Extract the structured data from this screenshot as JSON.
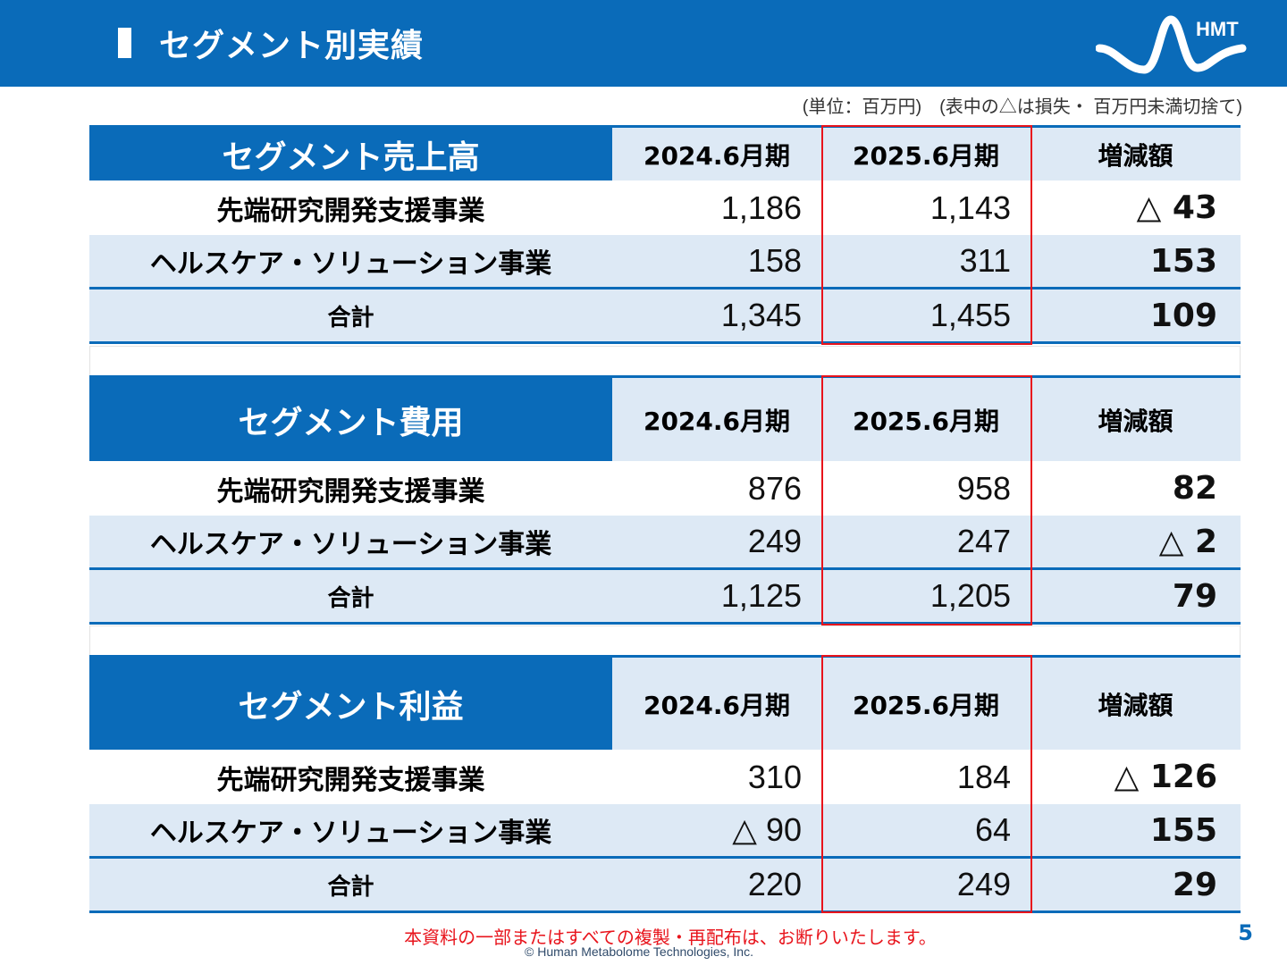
{
  "header": {
    "title": "セグメント別実績",
    "logo_text": "HMT"
  },
  "unit_note": "(単位：百万円)　(表中の△は損失・ 百万円未満切捨て)",
  "columns": [
    "2024.6月期",
    "2025.6月期",
    "増減額"
  ],
  "tables": [
    {
      "title": "セグメント売上高",
      "rows": [
        {
          "label": "先端研究開発支援事業",
          "v2024": "1,186",
          "v2025": "1,143",
          "change": "△ 43"
        },
        {
          "label": "ヘルスケア・ソリューション事業",
          "v2024": "158",
          "v2025": "311",
          "change": "153"
        },
        {
          "label": "合計",
          "v2024": "1,345",
          "v2025": "1,455",
          "change": "109"
        }
      ]
    },
    {
      "title": "セグメント費用",
      "rows": [
        {
          "label": "先端研究開発支援事業",
          "v2024": "876",
          "v2025": "958",
          "change": "82"
        },
        {
          "label": "ヘルスケア・ソリューション事業",
          "v2024": "249",
          "v2025": "247",
          "change": "△ 2"
        },
        {
          "label": "合計",
          "v2024": "1,125",
          "v2025": "1,205",
          "change": "79"
        }
      ]
    },
    {
      "title": "セグメント利益",
      "rows": [
        {
          "label": "先端研究開発支援事業",
          "v2024": "310",
          "v2025": "184",
          "change": "△ 126"
        },
        {
          "label": "ヘルスケア・ソリューション事業",
          "v2024": "△ 90",
          "v2025": "64",
          "change": "155"
        },
        {
          "label": "合計",
          "v2024": "220",
          "v2025": "249",
          "change": "29"
        }
      ]
    }
  ],
  "footer": {
    "note": "本資料の一部またはすべての複製・再配布は、お断りいたします。",
    "copyright": "© Human Metabolome Technologies, Inc.",
    "page_number": "5"
  },
  "colors": {
    "brand_blue": "#0a6bb9",
    "light_blue": "#dde9f5",
    "highlight_red": "#e8141c"
  }
}
